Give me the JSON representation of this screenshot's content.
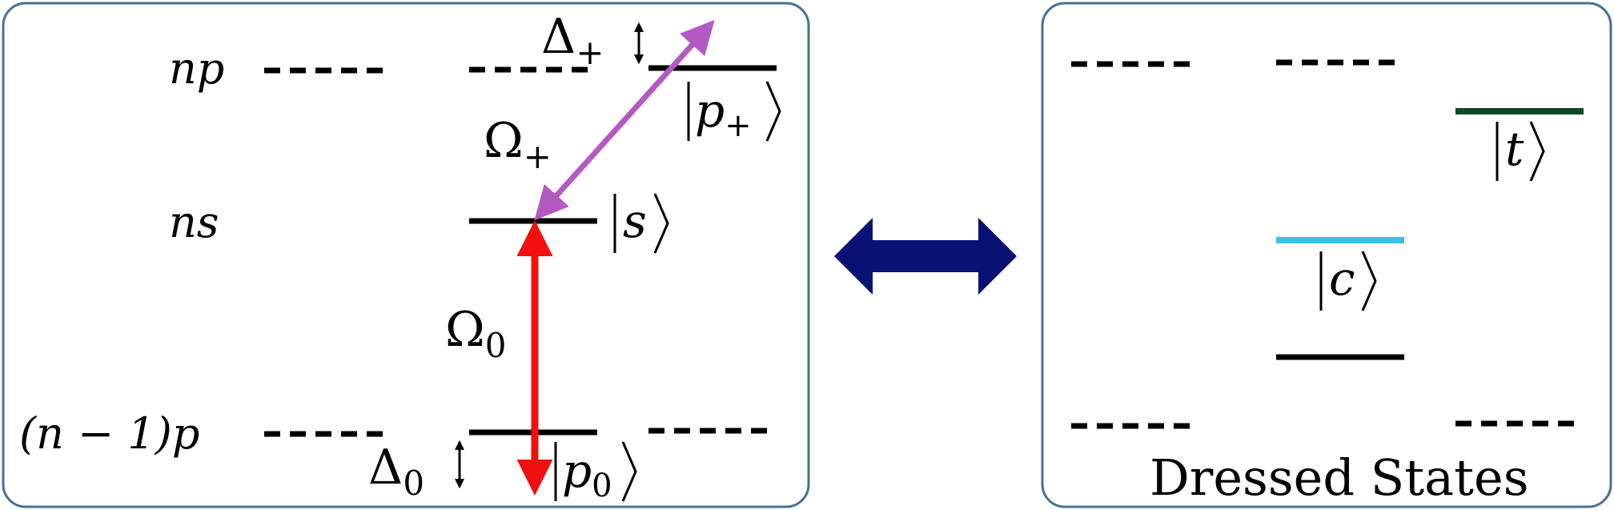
{
  "colors": {
    "panel_border": "#4a6f94",
    "level": "#000000",
    "omega_plus_arrow": "#b459c4",
    "omega_zero_arrow": "#f01010",
    "double_arrow": "#0a1175",
    "state_t": "#0e4a24",
    "state_c": "#37c2e8"
  },
  "left_panel": {
    "labels": {
      "np": "np",
      "ns": "ns",
      "n_minus_1_p": "(n − 1)p"
    },
    "kets": {
      "p_plus": {
        "symbol": "p",
        "sub": "+"
      },
      "s": {
        "symbol": "s"
      },
      "p_zero": {
        "symbol": "p",
        "sub": "0"
      }
    },
    "couplings": {
      "omega_plus": {
        "symbol": "Ω",
        "sub": "+"
      },
      "omega_zero": {
        "symbol": "Ω",
        "sub": "0"
      }
    },
    "detunings": {
      "delta_plus": {
        "symbol": "Δ",
        "sub": "+"
      },
      "delta_zero": {
        "symbol": "Δ",
        "sub": "0"
      }
    }
  },
  "right_panel": {
    "kets": {
      "t": {
        "symbol": "t"
      },
      "c": {
        "symbol": "c"
      }
    },
    "caption": "Dressed States"
  }
}
